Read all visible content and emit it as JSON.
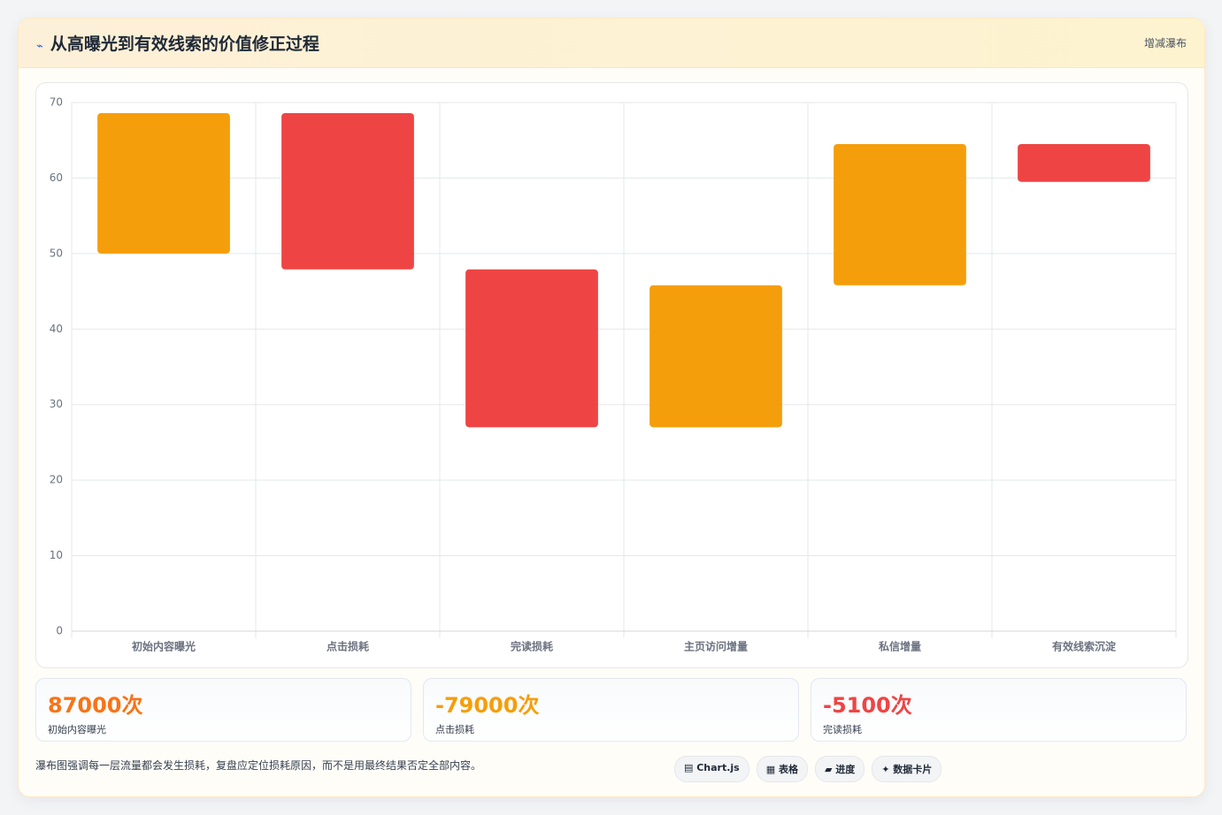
{
  "header": {
    "icon": "⌁",
    "title": "从高曝光到有效线索的价值修正过程",
    "tag": "增减瀑布"
  },
  "chart_data": {
    "type": "floating-bar",
    "categories": [
      "初始内容曝光",
      "点击损耗",
      "完读损耗",
      "主页访问增量",
      "私信增量",
      "有效线索沉淀"
    ],
    "ranges": [
      [
        50,
        68.6
      ],
      [
        47.9,
        68.6
      ],
      [
        27,
        47.9
      ],
      [
        27,
        45.8
      ],
      [
        45.8,
        64.5
      ],
      [
        59.5,
        64.5
      ]
    ],
    "colors": [
      "#f59e0b",
      "#ef4444",
      "#ef4444",
      "#f59e0b",
      "#f59e0b",
      "#ef4444"
    ],
    "ylim": [
      0,
      70
    ],
    "yticks": [
      0,
      10,
      20,
      30,
      40,
      50,
      60,
      70
    ],
    "grid": true
  },
  "stats": [
    {
      "value": "87000次",
      "label": "初始内容曝光",
      "color": "#f97316"
    },
    {
      "value": "-79000次",
      "label": "点击损耗",
      "color": "#f59e0b"
    },
    {
      "value": "-5100次",
      "label": "完读损耗",
      "color": "#ef4444"
    }
  ],
  "footer": {
    "note": "瀑布图强调每一层流量都会发生损耗，复盘应定位损耗原因，而不是用最终结果否定全部内容。",
    "buttons": [
      "▤ Chart.js",
      "▦ 表格",
      "▰ 进度",
      "✦ 数据卡片"
    ]
  }
}
